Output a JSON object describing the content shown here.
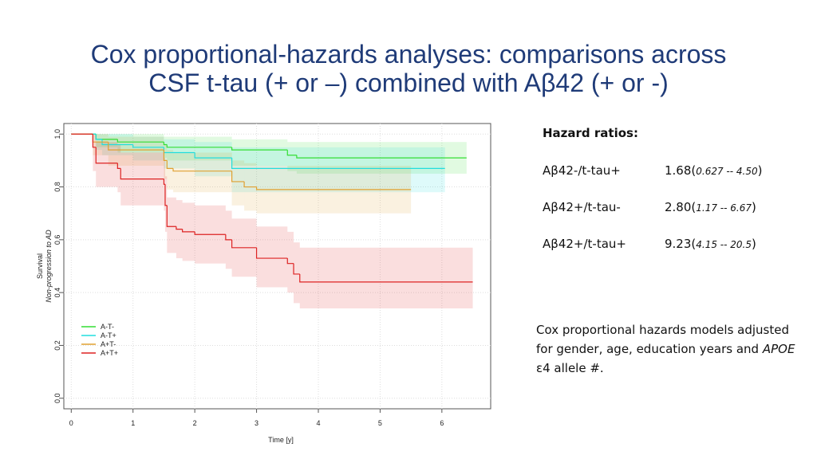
{
  "slide": {
    "title": [
      "Cox proportional-hazards analyses: comparisons across",
      "CSF t-tau (+ or –) combined with Aβ42 (+ or -)"
    ],
    "hazard_heading": "Hazard ratios:",
    "hazard_rows": [
      {
        "label": "Aβ42-/t-tau+",
        "parts": [
          "1.68(",
          "0.627 -- 4.50",
          ")"
        ]
      },
      {
        "label": "Aβ42+/t-tau-",
        "parts": [
          "2.80(",
          "1.17 -- 6.67",
          ")"
        ]
      },
      {
        "label": "Aβ42+/t-tau+",
        "parts": [
          "9.23(",
          "4.15 -- 20.5",
          ")"
        ]
      }
    ],
    "note": [
      "Cox proportional hazards models adjusted",
      "for gender, age, education years and ",
      "APOE",
      "ε4 allele #."
    ]
  },
  "chart_data": {
    "type": "step",
    "xlabel": "Time [y]",
    "ylabel": [
      "Survival",
      "Non-progression to AD"
    ],
    "xlim": [
      -0.12,
      6.79
    ],
    "ylim": [
      -0.04,
      1.04
    ],
    "xticks": [
      0,
      1,
      2,
      3,
      4,
      5,
      6
    ],
    "yticks": [
      {
        "value": 0,
        "label": "0.0"
      },
      0.2,
      0.4,
      0.6,
      0.8,
      {
        "value": 1,
        "label": "1.0"
      }
    ],
    "grid": true,
    "legend": "lower left",
    "series": [
      {
        "name": "A-T-",
        "color": "#33dd33",
        "x": [
          0,
          0.4,
          0.75,
          1.5,
          1.55,
          2.6,
          3.5,
          3.65,
          6.4
        ],
        "values": [
          1,
          0.98,
          0.97,
          0.96,
          0.95,
          0.94,
          0.92,
          0.91,
          0.91
        ],
        "lower": [
          1,
          0.95,
          0.93,
          0.91,
          0.9,
          0.88,
          0.86,
          0.85,
          0.85
        ],
        "upper": [
          1,
          1,
          1,
          0.99,
          0.99,
          0.98,
          0.97,
          0.97,
          0.97
        ]
      },
      {
        "name": "A-T+",
        "color": "#22dddd",
        "x": [
          0,
          0.4,
          0.5,
          1.0,
          1.5,
          2.0,
          2.6,
          6.05
        ],
        "values": [
          1,
          0.98,
          0.96,
          0.95,
          0.93,
          0.91,
          0.87,
          0.87
        ],
        "lower": [
          1,
          0.94,
          0.92,
          0.9,
          0.87,
          0.84,
          0.78,
          0.78
        ],
        "upper": [
          1,
          1,
          1,
          0.99,
          0.98,
          0.97,
          0.95,
          0.95
        ]
      },
      {
        "name": "A+T-",
        "color": "#e0a030",
        "x": [
          0,
          0.35,
          0.6,
          1.5,
          1.55,
          1.65,
          2.6,
          2.8,
          3.0,
          5.5
        ],
        "values": [
          1,
          0.97,
          0.94,
          0.9,
          0.87,
          0.86,
          0.82,
          0.8,
          0.79,
          0.79
        ],
        "lower": [
          1,
          0.92,
          0.88,
          0.83,
          0.79,
          0.78,
          0.73,
          0.71,
          0.7,
          0.7
        ],
        "upper": [
          1,
          1,
          0.99,
          0.96,
          0.94,
          0.93,
          0.9,
          0.89,
          0.88,
          0.88
        ]
      },
      {
        "name": "A+T+",
        "color": "#dd2222",
        "x": [
          0,
          0.35,
          0.4,
          0.75,
          0.8,
          1.5,
          1.52,
          1.55,
          1.7,
          1.8,
          2.0,
          2.5,
          2.6,
          3.0,
          3.5,
          3.6,
          3.7,
          6.5
        ],
        "values": [
          1,
          0.95,
          0.89,
          0.87,
          0.83,
          0.81,
          0.73,
          0.65,
          0.64,
          0.63,
          0.62,
          0.6,
          0.57,
          0.53,
          0.51,
          0.47,
          0.44,
          0.44
        ],
        "lower": [
          1,
          0.86,
          0.8,
          0.78,
          0.73,
          0.71,
          0.63,
          0.55,
          0.53,
          0.52,
          0.51,
          0.49,
          0.46,
          0.42,
          0.4,
          0.36,
          0.34,
          0.34
        ],
        "upper": [
          1,
          1,
          0.97,
          0.96,
          0.93,
          0.91,
          0.84,
          0.76,
          0.75,
          0.74,
          0.73,
          0.71,
          0.68,
          0.65,
          0.63,
          0.59,
          0.57,
          0.57
        ]
      }
    ]
  }
}
